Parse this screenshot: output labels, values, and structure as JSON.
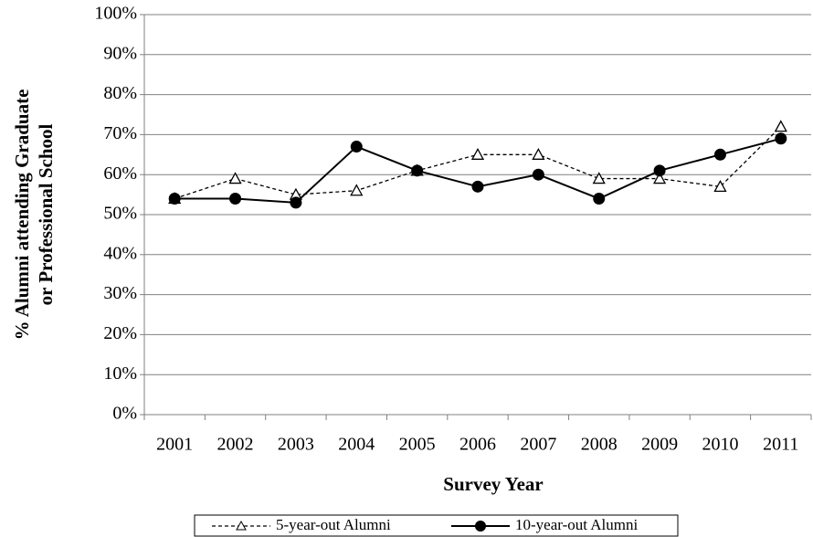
{
  "chart_data": {
    "type": "line",
    "y_label": [
      "% Alumni attending Graduate",
      "or Professional School"
    ],
    "x_label": "Survey Year",
    "categories": [
      "2001",
      "2002",
      "2003",
      "2004",
      "2005",
      "2006",
      "2007",
      "2008",
      "2009",
      "2010",
      "2011"
    ],
    "series": [
      {
        "name": "5-year-out Alumni",
        "color": "#000000",
        "dash": true,
        "marker": "triangle",
        "values": [
          54,
          59,
          55,
          56,
          61,
          65,
          65,
          59,
          59,
          57,
          72
        ]
      },
      {
        "name": "10-year-out Alumni",
        "color": "#000000",
        "dash": false,
        "marker": "circle",
        "values": [
          54,
          54,
          53,
          67,
          61,
          57,
          60,
          54,
          61,
          65,
          69
        ]
      }
    ],
    "ylim": [
      0,
      100
    ],
    "yticks": [
      {
        "value": 0,
        "label": "0%"
      },
      {
        "value": 10,
        "label": "10%"
      },
      {
        "value": 20,
        "label": "20%"
      },
      {
        "value": 30,
        "label": "30%"
      },
      {
        "value": 40,
        "label": "40%"
      },
      {
        "value": 50,
        "label": "50%"
      },
      {
        "value": 60,
        "label": "60%"
      },
      {
        "value": 70,
        "label": "70%"
      },
      {
        "value": 80,
        "label": "80%"
      },
      {
        "value": 90,
        "label": "90%"
      },
      {
        "value": 100,
        "label": "100%"
      }
    ],
    "grid": true,
    "legend": "bottom"
  }
}
